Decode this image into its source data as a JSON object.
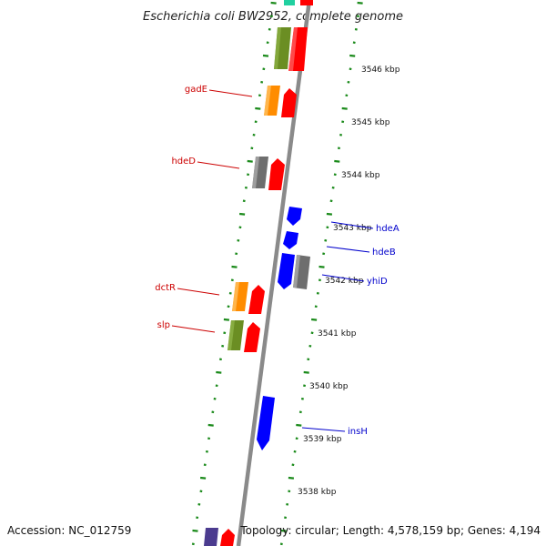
{
  "title": "Escherichia coli BW2952, complete genome",
  "footer": {
    "accession": "Accession: NC_012759",
    "topology": "Topology: circular; Length: 4,578,159 bp; Genes: 4,194"
  },
  "scale_labels": [
    "3546 kbp",
    "3545 kbp",
    "3544 kbp",
    "3543 kbp",
    "3542 kbp",
    "3541 kbp",
    "3540 kbp",
    "3539 kbp",
    "3538 kbp"
  ],
  "colors": {
    "backbone": "#8a8a8a",
    "ticks": "#1a8a1a",
    "forward_label": "#cc0000",
    "reverse_label": "#0000cc",
    "cds": "#ff0000",
    "reverse_cds": "#0000ff",
    "orange": "#ff8c00",
    "olive": "#6b8e23",
    "grey": "#6e6e6e",
    "teal": "#20d0a0",
    "purple": "#4b3b8f"
  },
  "genes_forward": [
    {
      "label": "gadE",
      "category": "orange"
    },
    {
      "label": "hdeD",
      "category": "grey"
    },
    {
      "label": "dctR",
      "category": "orange"
    },
    {
      "label": "slp",
      "category": "olive"
    }
  ],
  "genes_reverse": [
    {
      "label": "hdeA"
    },
    {
      "label": "hdeB"
    },
    {
      "label": "yhiD"
    },
    {
      "label": "insH"
    }
  ]
}
